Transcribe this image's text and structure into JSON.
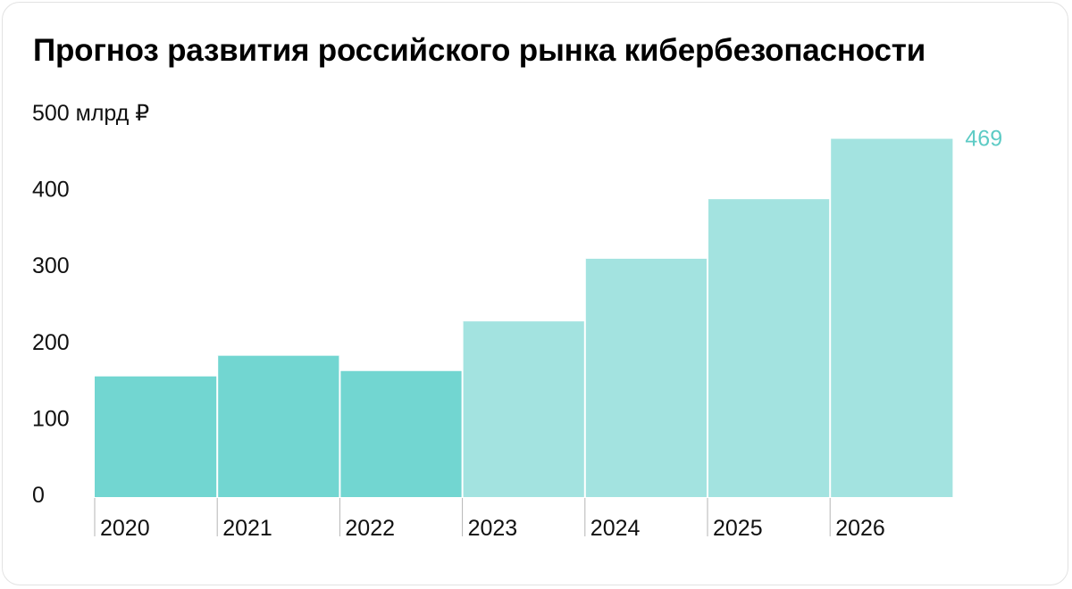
{
  "title": "Прогноз развития российского рынка кибербезопасности",
  "colors": {
    "bar_actual": "#72d6d1",
    "bar_forecast": "#a3e3e0",
    "label": "#5dcbc5",
    "separator": "#ffffff",
    "tick_line": "#b5b5b5",
    "text": "#111111"
  },
  "chart_data": {
    "type": "bar",
    "title": "Прогноз развития российского рынка кибербезопасности",
    "categories": [
      "2020",
      "2021",
      "2022",
      "2023",
      "2024",
      "2025",
      "2026"
    ],
    "values": [
      158,
      185,
      165,
      230,
      312,
      390,
      469
    ],
    "forecast_from_index": 3,
    "ylim": [
      0,
      500
    ],
    "yticks": [
      {
        "value": 0,
        "label": "0"
      },
      {
        "value": 100,
        "label": "100"
      },
      {
        "value": 200,
        "label": "200"
      },
      {
        "value": 300,
        "label": "300"
      },
      {
        "value": 400,
        "label": "400"
      },
      {
        "value": 500,
        "label": "500 млрд ₽"
      }
    ],
    "data_labels": [
      {
        "index": 6,
        "text": "469"
      }
    ],
    "grid": false,
    "legend": "none"
  }
}
